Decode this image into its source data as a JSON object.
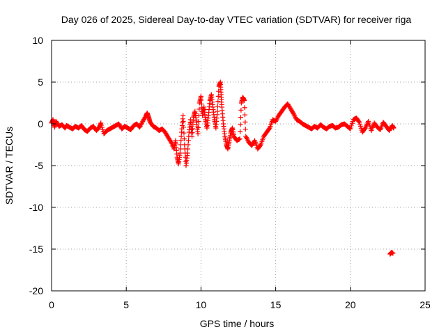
{
  "chart_data": {
    "type": "scatter",
    "title": "Day 026 of 2025, Sidereal Day-to-day VTEC variation (SDTVAR) for receiver riga",
    "xlabel": "GPS time / hours",
    "ylabel": "SDTVAR / TECUs",
    "xlim": [
      0,
      25
    ],
    "ylim": [
      -20,
      10
    ],
    "xticks": [
      0,
      5,
      10,
      15,
      20,
      25
    ],
    "yticks": [
      -20,
      -15,
      -10,
      -5,
      0,
      5,
      10
    ],
    "grid": true,
    "marker": "+",
    "series": [
      {
        "name": "SDTVAR",
        "color": "#ff0000",
        "points": [
          [
            0.0,
            0.1
          ],
          [
            0.1,
            0.5
          ],
          [
            0.2,
            -0.4
          ],
          [
            0.3,
            0.3
          ],
          [
            0.5,
            -0.3
          ],
          [
            0.7,
            -0.1
          ],
          [
            0.9,
            -0.5
          ],
          [
            1.0,
            -0.2
          ],
          [
            1.2,
            -0.4
          ],
          [
            1.4,
            -0.6
          ],
          [
            1.6,
            -0.3
          ],
          [
            1.8,
            -0.5
          ],
          [
            2.0,
            -0.2
          ],
          [
            2.2,
            -0.7
          ],
          [
            2.4,
            -0.9
          ],
          [
            2.6,
            -0.5
          ],
          [
            2.8,
            -0.3
          ],
          [
            3.0,
            -0.8
          ],
          [
            3.2,
            -0.4
          ],
          [
            3.3,
            0.1
          ],
          [
            3.5,
            -1.2
          ],
          [
            3.7,
            -0.8
          ],
          [
            3.9,
            -0.6
          ],
          [
            4.1,
            -0.4
          ],
          [
            4.3,
            -0.2
          ],
          [
            4.5,
            0.0
          ],
          [
            4.7,
            -0.6
          ],
          [
            4.9,
            -0.3
          ],
          [
            5.1,
            -0.5
          ],
          [
            5.3,
            -0.7
          ],
          [
            5.5,
            -0.2
          ],
          [
            5.7,
            0.0
          ],
          [
            5.9,
            -0.4
          ],
          [
            6.1,
            0.3
          ],
          [
            6.3,
            0.9
          ],
          [
            6.4,
            1.3
          ],
          [
            6.5,
            0.8
          ],
          [
            6.6,
            0.2
          ],
          [
            6.8,
            -0.3
          ],
          [
            7.0,
            -0.5
          ],
          [
            7.2,
            -0.8
          ],
          [
            7.4,
            -0.6
          ],
          [
            7.6,
            -1.0
          ],
          [
            7.8,
            -1.6
          ],
          [
            8.0,
            -2.2
          ],
          [
            8.2,
            -3.0
          ],
          [
            8.3,
            -2.0
          ],
          [
            8.4,
            -4.0
          ],
          [
            8.5,
            -4.8
          ],
          [
            8.6,
            -3.5
          ],
          [
            8.7,
            -1.0
          ],
          [
            8.8,
            1.0
          ],
          [
            8.9,
            -2.5
          ],
          [
            9.0,
            -5.0
          ],
          [
            9.1,
            -3.5
          ],
          [
            9.2,
            -1.0
          ],
          [
            9.3,
            0.5
          ],
          [
            9.4,
            -1.5
          ],
          [
            9.5,
            0.8
          ],
          [
            9.6,
            1.5
          ],
          [
            9.7,
            0.2
          ],
          [
            9.8,
            -1.2
          ],
          [
            9.9,
            2.5
          ],
          [
            10.0,
            3.3
          ],
          [
            10.1,
            1.0
          ],
          [
            10.2,
            2.0
          ],
          [
            10.3,
            0.5
          ],
          [
            10.4,
            -0.5
          ],
          [
            10.5,
            1.0
          ],
          [
            10.6,
            2.8
          ],
          [
            10.7,
            3.5
          ],
          [
            10.8,
            2.0
          ],
          [
            10.9,
            0.5
          ],
          [
            11.0,
            -0.5
          ],
          [
            11.1,
            1.5
          ],
          [
            11.2,
            4.5
          ],
          [
            11.3,
            5.0
          ],
          [
            11.35,
            3.5
          ],
          [
            11.4,
            2.0
          ],
          [
            11.5,
            0.0
          ],
          [
            11.6,
            -1.5
          ],
          [
            11.7,
            -2.5
          ],
          [
            11.8,
            -3.0
          ],
          [
            11.9,
            -2.0
          ],
          [
            12.0,
            -1.0
          ],
          [
            12.1,
            -0.5
          ],
          [
            12.2,
            -1.5
          ],
          [
            12.4,
            -2.0
          ],
          [
            12.6,
            -1.8
          ],
          [
            12.7,
            2.5
          ],
          [
            12.8,
            3.2
          ],
          [
            12.9,
            2.8
          ],
          [
            13.0,
            -1.5
          ],
          [
            13.2,
            -2.2
          ],
          [
            13.4,
            -2.6
          ],
          [
            13.6,
            -2.0
          ],
          [
            13.8,
            -3.0
          ],
          [
            14.0,
            -2.5
          ],
          [
            14.2,
            -1.5
          ],
          [
            14.4,
            -1.0
          ],
          [
            14.6,
            -0.5
          ],
          [
            14.8,
            0.5
          ],
          [
            15.0,
            0.3
          ],
          [
            15.2,
            1.0
          ],
          [
            15.4,
            1.5
          ],
          [
            15.6,
            2.0
          ],
          [
            15.8,
            2.4
          ],
          [
            16.0,
            1.8
          ],
          [
            16.2,
            1.2
          ],
          [
            16.4,
            0.5
          ],
          [
            16.6,
            0.3
          ],
          [
            16.8,
            0.0
          ],
          [
            17.0,
            -0.2
          ],
          [
            17.2,
            -0.4
          ],
          [
            17.4,
            -0.6
          ],
          [
            17.6,
            -0.3
          ],
          [
            17.8,
            -0.5
          ],
          [
            18.0,
            -0.1
          ],
          [
            18.2,
            -0.4
          ],
          [
            18.4,
            -0.6
          ],
          [
            18.6,
            -0.3
          ],
          [
            18.8,
            -0.2
          ],
          [
            19.0,
            -0.5
          ],
          [
            19.2,
            -0.4
          ],
          [
            19.4,
            -0.1
          ],
          [
            19.6,
            0.0
          ],
          [
            19.8,
            -0.3
          ],
          [
            20.0,
            -0.6
          ],
          [
            20.2,
            0.5
          ],
          [
            20.4,
            0.7
          ],
          [
            20.6,
            0.2
          ],
          [
            20.8,
            -1.0
          ],
          [
            21.0,
            -0.5
          ],
          [
            21.2,
            0.3
          ],
          [
            21.4,
            -0.8
          ],
          [
            21.6,
            0.1
          ],
          [
            21.8,
            -0.4
          ],
          [
            22.0,
            -0.7
          ],
          [
            22.2,
            0.2
          ],
          [
            22.4,
            -0.3
          ],
          [
            22.6,
            -0.8
          ],
          [
            22.8,
            -0.2
          ],
          [
            22.9,
            -0.5
          ],
          [
            22.65,
            -15.6
          ],
          [
            22.75,
            -15.4
          ],
          [
            22.85,
            -15.5
          ]
        ]
      }
    ]
  }
}
